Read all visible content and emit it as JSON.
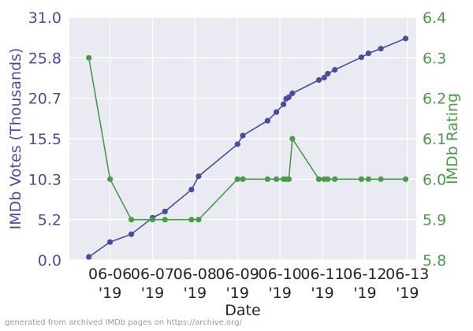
{
  "chart_data": {
    "type": "line",
    "xlabel": "Date",
    "x_ticks": [
      {
        "date": "2019-06-06",
        "line1": "06-06",
        "line2": "'19"
      },
      {
        "date": "2019-06-07",
        "line1": "06-07",
        "line2": "'19"
      },
      {
        "date": "2019-06-08",
        "line1": "06-08",
        "line2": "'19"
      },
      {
        "date": "2019-06-09",
        "line1": "06-09",
        "line2": "'19"
      },
      {
        "date": "2019-06-10",
        "line1": "06-10",
        "line2": "'19"
      },
      {
        "date": "2019-06-11",
        "line1": "06-11",
        "line2": "'19"
      },
      {
        "date": "2019-06-12",
        "line1": "06-12",
        "line2": "'19"
      },
      {
        "date": "2019-06-13",
        "line1": "06-13",
        "line2": "'19"
      }
    ],
    "xlim": [
      "2019-06-05T01:00",
      "2019-06-13T05:00"
    ],
    "grid": true,
    "y_left": {
      "label": "IMDb Votes (Thousands)",
      "ylim": [
        0,
        31
      ],
      "ticks": [
        "0.0",
        "5.2",
        "10.3",
        "15.5",
        "20.7",
        "25.8",
        "31.0"
      ],
      "tick_values": [
        0,
        5.17,
        10.33,
        15.5,
        20.67,
        25.83,
        31.0
      ],
      "color": "#4c4c9c"
    },
    "y_right": {
      "label": "IMDb Rating",
      "ylim": [
        5.8,
        6.4
      ],
      "ticks": [
        "5.8",
        "5.9",
        "6.0",
        "6.1",
        "6.2",
        "6.3",
        "6.4"
      ],
      "tick_values": [
        5.8,
        5.9,
        6.0,
        6.1,
        6.2,
        6.3,
        6.4
      ],
      "color": "#4a9a4a"
    },
    "series": [
      {
        "axis": "left",
        "color": "#4c4c9c",
        "points": [
          {
            "x": "2019-06-05T12:00",
            "y": 0.4
          },
          {
            "x": "2019-06-06T00:00",
            "y": 2.3
          },
          {
            "x": "2019-06-06T12:00",
            "y": 3.3
          },
          {
            "x": "2019-06-07T00:00",
            "y": 5.4
          },
          {
            "x": "2019-06-07T07:00",
            "y": 6.2
          },
          {
            "x": "2019-06-07T22:00",
            "y": 9.0
          },
          {
            "x": "2019-06-08T02:00",
            "y": 10.7
          },
          {
            "x": "2019-06-09T00:00",
            "y": 14.8
          },
          {
            "x": "2019-06-09T03:00",
            "y": 15.9
          },
          {
            "x": "2019-06-09T17:00",
            "y": 17.8
          },
          {
            "x": "2019-06-09T22:00",
            "y": 18.9
          },
          {
            "x": "2019-06-10T02:00",
            "y": 19.9
          },
          {
            "x": "2019-06-10T03:30",
            "y": 20.6
          },
          {
            "x": "2019-06-10T05:00",
            "y": 20.8
          },
          {
            "x": "2019-06-10T07:00",
            "y": 21.3
          },
          {
            "x": "2019-06-10T22:00",
            "y": 23.0
          },
          {
            "x": "2019-06-11T01:00",
            "y": 23.3
          },
          {
            "x": "2019-06-11T03:00",
            "y": 23.8
          },
          {
            "x": "2019-06-11T07:00",
            "y": 24.3
          },
          {
            "x": "2019-06-11T22:00",
            "y": 25.9
          },
          {
            "x": "2019-06-12T02:00",
            "y": 26.4
          },
          {
            "x": "2019-06-12T09:00",
            "y": 27.0
          },
          {
            "x": "2019-06-12T23:00",
            "y": 28.3
          }
        ]
      },
      {
        "axis": "right",
        "color": "#4a9a4a",
        "points": [
          {
            "x": "2019-06-05T12:00",
            "y": 6.3
          },
          {
            "x": "2019-06-06T00:00",
            "y": 6.0
          },
          {
            "x": "2019-06-06T12:00",
            "y": 5.9
          },
          {
            "x": "2019-06-07T00:00",
            "y": 5.9
          },
          {
            "x": "2019-06-07T07:00",
            "y": 5.9
          },
          {
            "x": "2019-06-07T22:00",
            "y": 5.9
          },
          {
            "x": "2019-06-08T02:00",
            "y": 5.9
          },
          {
            "x": "2019-06-09T00:00",
            "y": 6.0
          },
          {
            "x": "2019-06-09T03:00",
            "y": 6.0
          },
          {
            "x": "2019-06-09T17:00",
            "y": 6.0
          },
          {
            "x": "2019-06-09T22:00",
            "y": 6.0
          },
          {
            "x": "2019-06-10T02:00",
            "y": 6.0
          },
          {
            "x": "2019-06-10T03:30",
            "y": 6.0
          },
          {
            "x": "2019-06-10T05:00",
            "y": 6.0
          },
          {
            "x": "2019-06-10T07:00",
            "y": 6.1
          },
          {
            "x": "2019-06-10T22:00",
            "y": 6.0
          },
          {
            "x": "2019-06-11T01:00",
            "y": 6.0
          },
          {
            "x": "2019-06-11T03:00",
            "y": 6.0
          },
          {
            "x": "2019-06-11T07:00",
            "y": 6.0
          },
          {
            "x": "2019-06-11T22:00",
            "y": 6.0
          },
          {
            "x": "2019-06-12T02:00",
            "y": 6.0
          },
          {
            "x": "2019-06-12T09:00",
            "y": 6.0
          },
          {
            "x": "2019-06-12T23:00",
            "y": 6.0
          }
        ]
      }
    ],
    "footnote": "generated from archived IMDb pages on https://archive.org/"
  }
}
